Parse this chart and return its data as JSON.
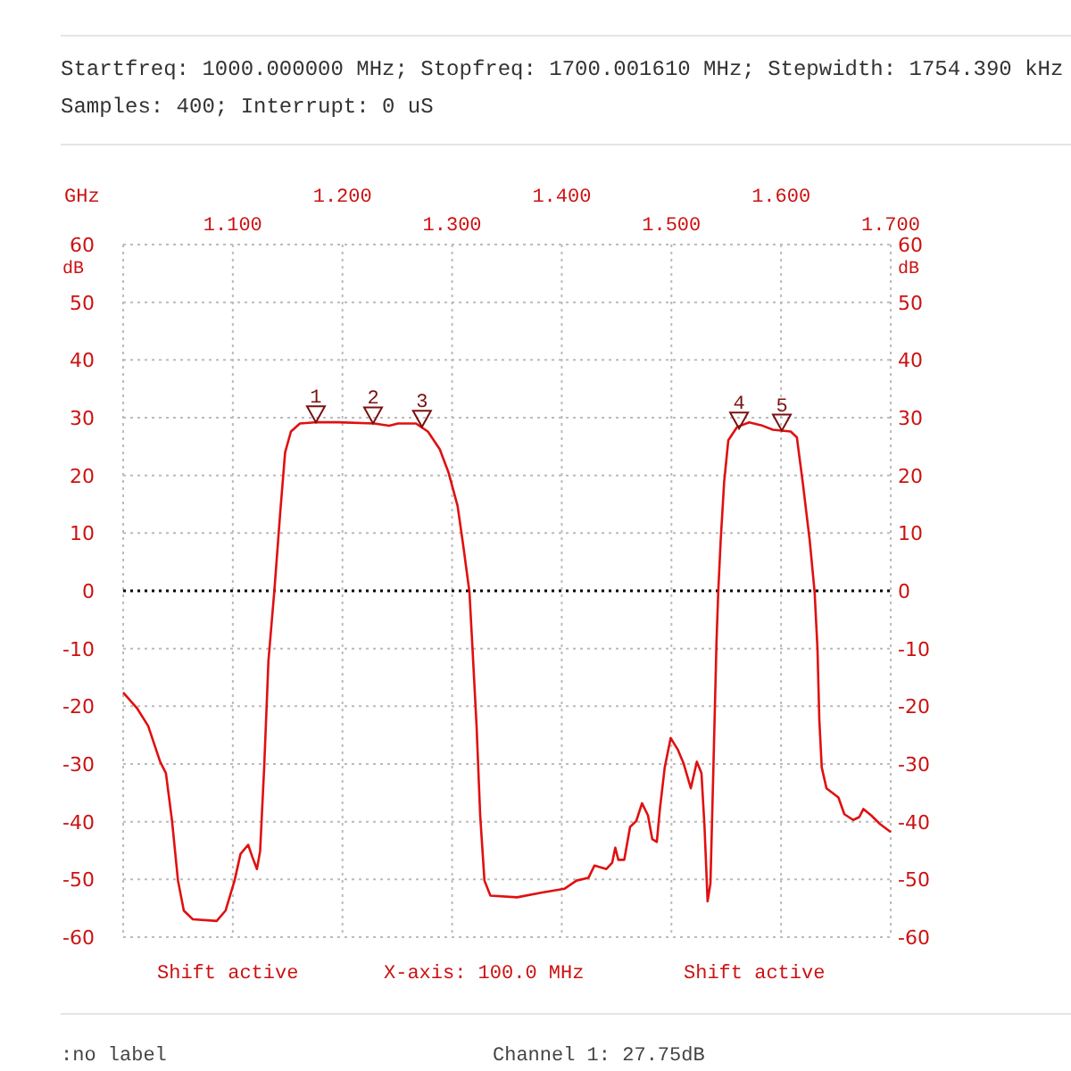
{
  "chart_data": {
    "type": "line",
    "title": "Startfreq: 1000.000000 MHz; Stopfreq: 1700.001610 MHz; Stepwidth: 1754.390 kHz",
    "subtitle": "Samples:  400; Interrupt:    0 uS",
    "xlabel": "GHz",
    "ylabel": "dB",
    "y2label": "dB",
    "xlim": [
      1.0,
      1.7
    ],
    "xticks": [
      {
        "value": 1.0,
        "label": null
      },
      {
        "value": 1.1,
        "label": "1.100"
      },
      {
        "value": 1.3,
        "label": "1.300"
      },
      {
        "value": 1.5,
        "label": "1.500"
      },
      {
        "value": 1.7,
        "label": "1.700"
      }
    ],
    "x2lim": [
      1.0,
      1.7
    ],
    "x2ticks": [
      {
        "value": 1.2,
        "label": "1.200"
      },
      {
        "value": 1.4,
        "label": "1.400"
      },
      {
        "value": 1.6,
        "label": "1.600"
      }
    ],
    "ylim": [
      -60,
      60
    ],
    "yticks": [
      -60,
      -50,
      -40,
      -30,
      -20,
      -10,
      0,
      10,
      20,
      30,
      40,
      50,
      60
    ],
    "y2lim": [
      -60,
      60
    ],
    "y2ticks": [
      -60,
      -50,
      -40,
      -30,
      -20,
      -10,
      0,
      10,
      20,
      30,
      40,
      50,
      60
    ],
    "grid": true,
    "marker": "none",
    "line_style": "solid",
    "ref_lines": [
      {
        "axis": "y",
        "value": 0,
        "label": null,
        "color": "#000000",
        "line_style": "dotted"
      }
    ],
    "series": [
      {
        "color": "#e01010",
        "x": [
          1.0,
          1.0125,
          1.0228,
          1.0337,
          1.039,
          1.0446,
          1.05,
          1.0553,
          1.0635,
          1.0853,
          1.0934,
          1.1016,
          1.107,
          1.114,
          1.1178,
          1.122,
          1.1249,
          1.1286,
          1.1325,
          1.138,
          1.1433,
          1.1477,
          1.153,
          1.1612,
          1.1748,
          1.1965,
          1.229,
          1.2426,
          1.2507,
          1.267,
          1.2779,
          1.2888,
          1.2969,
          1.305,
          1.3104,
          1.3158,
          1.3186,
          1.3223,
          1.3256,
          1.3295,
          1.3349,
          1.3593,
          1.381,
          1.4027,
          1.4135,
          1.4244,
          1.4298,
          1.4407,
          1.446,
          1.4488,
          1.4516,
          1.457,
          1.4623,
          1.4679,
          1.4732,
          1.4786,
          1.4825,
          1.4867,
          1.4895,
          1.4939,
          1.4993,
          1.5058,
          1.5111,
          1.5177,
          1.5232,
          1.5274,
          1.5302,
          1.533,
          1.5356,
          1.5383,
          1.5411,
          1.5427,
          1.5449,
          1.5481,
          1.5519,
          1.56,
          1.5709,
          1.5818,
          1.5925,
          1.6088,
          1.6144,
          1.6197,
          1.6262,
          1.6306,
          1.6332,
          1.6349,
          1.6371,
          1.6414,
          1.6523,
          1.6577,
          1.6658,
          1.6713,
          1.6751,
          1.6821,
          1.6902,
          1.7
        ],
        "values": [
          -17.6,
          -20.3,
          -23.4,
          -29.6,
          -31.6,
          -39.9,
          -50.2,
          -55.4,
          -56.9,
          -57.2,
          -55.4,
          -50.2,
          -45.6,
          -44,
          -46.1,
          -48.2,
          -45.1,
          -30.6,
          -12.1,
          0.3,
          13.7,
          24,
          27.6,
          29,
          29.2,
          29.2,
          29,
          28.6,
          29,
          29,
          27.6,
          24.5,
          20.4,
          14.7,
          7.5,
          -0.2,
          -10,
          -23.4,
          -38.9,
          -50.2,
          -52.8,
          -53.1,
          -52.3,
          -51.6,
          -50.2,
          -49.7,
          -47.6,
          -48.2,
          -47.1,
          -44.5,
          -46.6,
          -46.6,
          -40.9,
          -39.9,
          -36.8,
          -38.9,
          -43,
          -43.5,
          -37.8,
          -30.6,
          -25.5,
          -27.5,
          -29.9,
          -34.2,
          -29.6,
          -31.6,
          -40.9,
          -53.8,
          -50.7,
          -30.6,
          -9,
          -0.2,
          8.6,
          18.9,
          26.1,
          28.4,
          29.2,
          28.7,
          27.9,
          27.6,
          26.6,
          18.9,
          8.6,
          -0.2,
          -10,
          -22.4,
          -30.6,
          -34.2,
          -35.8,
          -38.7,
          -39.7,
          -39.2,
          -37.8,
          -38.9,
          -40.4,
          -41.8
        ]
      }
    ],
    "annotations": [
      "Shift active",
      "X-axis: 100.0 MHz",
      "Shift active",
      ":no label",
      "Channel 1: 27.75dB",
      {
        "text": "1",
        "x": 1.1758,
        "y": 29.2
      },
      {
        "text": "2",
        "x": 1.2279,
        "y": 29
      },
      {
        "text": "3",
        "x": 1.2725,
        "y": 28.4
      },
      {
        "text": "4",
        "x": 1.5617,
        "y": 28.1
      },
      {
        "text": "5",
        "x": 1.6007,
        "y": 27.75
      }
    ]
  }
}
